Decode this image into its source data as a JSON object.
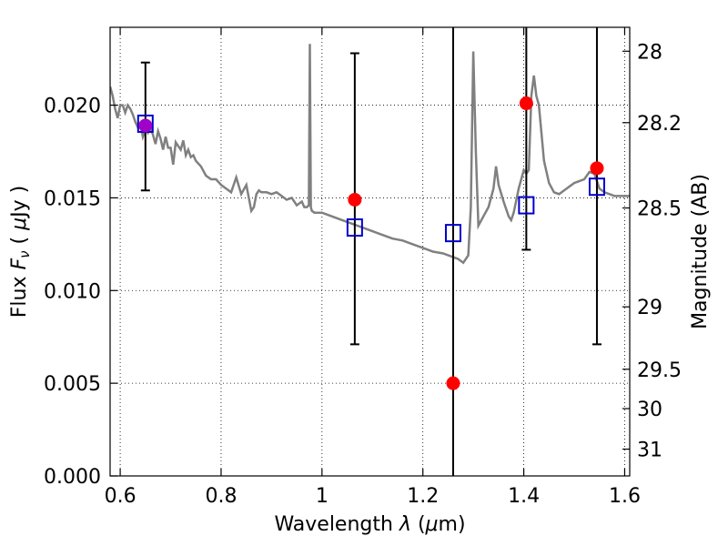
{
  "chart_data": {
    "type": "scatter",
    "xlabel": "Wavelength  λ (μm)",
    "ylabel": "Flux  Fν  ( μJy )",
    "ylabel_right": "Magnitude (AB)",
    "xlim": [
      0.58,
      1.61
    ],
    "ylim": [
      0.0,
      0.0242
    ],
    "x_ticks": [
      {
        "value": 0.6,
        "label": "0.6"
      },
      {
        "value": 0.8,
        "label": "0.8"
      },
      {
        "value": 1.0,
        "label": "1"
      },
      {
        "value": 1.2,
        "label": "1.2"
      },
      {
        "value": 1.4,
        "label": "1.4"
      },
      {
        "value": 1.6,
        "label": "1.6"
      }
    ],
    "y_ticks": [
      {
        "value": 0.0,
        "label": "0.000"
      },
      {
        "value": 0.005,
        "label": "0.005"
      },
      {
        "value": 0.01,
        "label": "0.010"
      },
      {
        "value": 0.015,
        "label": "0.015"
      },
      {
        "value": 0.02,
        "label": "0.020"
      }
    ],
    "right_ticks": [
      {
        "mag": 28.0,
        "label": "28"
      },
      {
        "mag": 28.2,
        "label": "28.2"
      },
      {
        "mag": 28.5,
        "label": "28.5"
      },
      {
        "mag": 29.0,
        "label": "29"
      },
      {
        "mag": 29.5,
        "label": "29.5"
      },
      {
        "mag": 30.0,
        "label": "30"
      },
      {
        "mag": 31.0,
        "label": "31"
      }
    ],
    "grid": true,
    "grid_style": "dotted",
    "model_spectrum": {
      "color": "#808080",
      "x": [
        0.58,
        0.585,
        0.59,
        0.595,
        0.6,
        0.605,
        0.61,
        0.615,
        0.62,
        0.625,
        0.63,
        0.635,
        0.64,
        0.645,
        0.65,
        0.655,
        0.66,
        0.665,
        0.67,
        0.675,
        0.68,
        0.685,
        0.69,
        0.695,
        0.7,
        0.705,
        0.71,
        0.715,
        0.72,
        0.725,
        0.73,
        0.735,
        0.74,
        0.745,
        0.75,
        0.76,
        0.77,
        0.78,
        0.79,
        0.8,
        0.81,
        0.82,
        0.83,
        0.84,
        0.85,
        0.86,
        0.865,
        0.87,
        0.875,
        0.88,
        0.89,
        0.9,
        0.91,
        0.92,
        0.93,
        0.94,
        0.95,
        0.96,
        0.965,
        0.97,
        0.974,
        0.976,
        0.978,
        0.98,
        0.985,
        1.0,
        1.02,
        1.04,
        1.06,
        1.08,
        1.1,
        1.12,
        1.14,
        1.16,
        1.18,
        1.2,
        1.22,
        1.24,
        1.26,
        1.27,
        1.28,
        1.29,
        1.295,
        1.3,
        1.305,
        1.31,
        1.32,
        1.33,
        1.34,
        1.345,
        1.35,
        1.36,
        1.37,
        1.375,
        1.38,
        1.39,
        1.4,
        1.405,
        1.41,
        1.415,
        1.42,
        1.425,
        1.43,
        1.44,
        1.45,
        1.46,
        1.47,
        1.48,
        1.5,
        1.52,
        1.53,
        1.54,
        1.55,
        1.56,
        1.58,
        1.6,
        1.61
      ],
      "y": [
        0.021,
        0.0205,
        0.0198,
        0.0193,
        0.02,
        0.02,
        0.0196,
        0.02,
        0.0198,
        0.0195,
        0.0191,
        0.0188,
        0.019,
        0.0183,
        0.0187,
        0.0185,
        0.0188,
        0.0184,
        0.0179,
        0.0186,
        0.0182,
        0.0176,
        0.0183,
        0.0177,
        0.0177,
        0.0168,
        0.018,
        0.0178,
        0.0176,
        0.0181,
        0.0173,
        0.0176,
        0.0172,
        0.0173,
        0.017,
        0.0167,
        0.0162,
        0.016,
        0.016,
        0.0157,
        0.0155,
        0.0153,
        0.0161,
        0.0152,
        0.0157,
        0.0143,
        0.0145,
        0.0152,
        0.0154,
        0.0153,
        0.0153,
        0.0152,
        0.0153,
        0.0151,
        0.0149,
        0.015,
        0.0146,
        0.0148,
        0.0145,
        0.0145,
        0.0146,
        0.0233,
        0.0145,
        0.0143,
        0.0142,
        0.0142,
        0.014,
        0.0138,
        0.0136,
        0.0134,
        0.0132,
        0.013,
        0.0128,
        0.0127,
        0.0125,
        0.0123,
        0.0121,
        0.012,
        0.0118,
        0.0117,
        0.0115,
        0.0119,
        0.0145,
        0.0229,
        0.0175,
        0.0135,
        0.014,
        0.0145,
        0.0155,
        0.0167,
        0.0157,
        0.0148,
        0.014,
        0.0138,
        0.0142,
        0.0155,
        0.0165,
        0.0163,
        0.0165,
        0.0205,
        0.0216,
        0.0205,
        0.02,
        0.017,
        0.0158,
        0.0153,
        0.0152,
        0.0154,
        0.0158,
        0.016,
        0.0164,
        0.0163,
        0.0155,
        0.0153,
        0.0151,
        0.0151,
        0.0151
      ]
    },
    "series": [
      {
        "marker": "filled-circle",
        "color": "#ff0000",
        "x": [
          0.65,
          1.065,
          1.26,
          1.405,
          1.545
        ],
        "y": [
          0.0189,
          0.0149,
          0.005,
          0.0201,
          0.0166
        ]
      },
      {
        "marker": "open-square",
        "color": "#0000cc",
        "x": [
          0.65,
          1.065,
          1.26,
          1.405,
          1.545
        ],
        "y": [
          0.019,
          0.0134,
          0.0131,
          0.0146,
          0.0156
        ]
      }
    ],
    "overlap_color": "#a000c8",
    "error_bars": {
      "color": "#000000",
      "x": [
        0.65,
        1.065,
        1.26,
        1.405,
        1.545
      ],
      "lower": [
        0.0154,
        0.0071,
        0.0,
        0.0122,
        0.0071
      ],
      "upper": [
        0.0223,
        0.0228,
        0.0242,
        0.0242,
        0.0242
      ]
    }
  }
}
